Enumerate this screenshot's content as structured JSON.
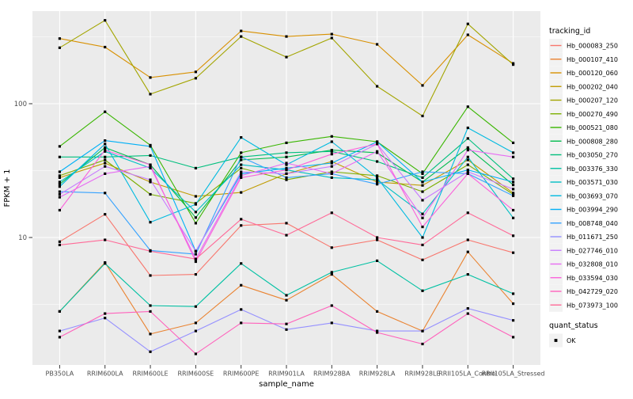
{
  "chart_data": {
    "type": "line",
    "title": "",
    "xlabel": "sample_name",
    "ylabel": "FPKM + 1",
    "y_scale": "log10",
    "ylim": [
      1.1,
      500
    ],
    "y_major_ticks": [
      10,
      100
    ],
    "y_major_tick_labels": [
      "10",
      "100"
    ],
    "y_minor_gridlines": [
      3.1623,
      31.623,
      316.23
    ],
    "grid": true,
    "legend_position": "right",
    "categories": [
      "PB350LA",
      "RRIM600LA",
      "RRIM600LE",
      "RRIM600SE",
      "RRIM600PE",
      "RRIM901LA",
      "RRIM928BA",
      "RRIM928LA",
      "RRIM928LE",
      "RRII105LA_Control",
      "RRII105LA_Stressed"
    ],
    "series": [
      {
        "name": "Hb_000083_250",
        "color": "#F8766D",
        "values": [
          9.3,
          14.9,
          5.2,
          5.3,
          12.3,
          12.8,
          8.4,
          9.6,
          6.8,
          9.6,
          7.7
        ]
      },
      {
        "name": "Hb_000107_410",
        "color": "#EA8331",
        "values": [
          2.8,
          6.5,
          1.9,
          2.3,
          4.4,
          3.4,
          5.3,
          2.8,
          2.0,
          7.8,
          3.2
        ]
      },
      {
        "name": "Hb_000120_060",
        "color": "#D89000",
        "values": [
          307,
          265,
          157,
          173,
          350,
          318,
          331,
          278,
          137,
          327,
          200
        ]
      },
      {
        "name": "Hb_000202_040",
        "color": "#C09B00",
        "values": [
          28,
          36,
          26,
          20.3,
          21.7,
          30,
          37,
          26,
          24.5,
          38,
          21.5
        ]
      },
      {
        "name": "Hb_000207_120",
        "color": "#A3A500",
        "values": [
          262,
          420,
          118,
          155,
          318,
          223,
          310,
          135,
          81,
          395,
          196
        ]
      },
      {
        "name": "Hb_000270_490",
        "color": "#7CAE00",
        "values": [
          29,
          38,
          21,
          18,
          33,
          27,
          31,
          29,
          22,
          35,
          21
        ]
      },
      {
        "name": "Hb_000521_080",
        "color": "#39B600",
        "values": [
          48,
          87,
          49,
          12.8,
          43,
          51,
          57,
          52,
          30,
          95,
          51
        ]
      },
      {
        "name": "Hb_000808_280",
        "color": "#00BB4E",
        "values": [
          25,
          47,
          35,
          14.1,
          38,
          40,
          45,
          43,
          26,
          47,
          24.7
        ]
      },
      {
        "name": "Hb_003050_270",
        "color": "#00BF7D",
        "values": [
          40,
          40,
          41,
          33,
          40,
          43,
          44,
          37,
          28,
          55,
          27.5
        ]
      },
      {
        "name": "Hb_003376_330",
        "color": "#00C1A3",
        "values": [
          2.8,
          6.4,
          3.1,
          3.05,
          6.4,
          3.7,
          5.5,
          6.7,
          4.0,
          5.3,
          3.8
        ]
      },
      {
        "name": "Hb_003571_030",
        "color": "#00BFC4",
        "values": [
          26,
          44,
          33,
          15.5,
          35,
          32,
          28,
          27,
          15,
          40,
          14
        ]
      },
      {
        "name": "Hb_003693_070",
        "color": "#00BAE0",
        "values": [
          24,
          50,
          13,
          17.7,
          56,
          35,
          52,
          28,
          10,
          66,
          43
        ]
      },
      {
        "name": "Hb_003994_290",
        "color": "#00B0F6",
        "values": [
          31,
          53,
          48,
          7.9,
          30,
          33,
          36,
          52,
          26,
          32,
          26
        ]
      },
      {
        "name": "Hb_008748_040",
        "color": "#35A2FF",
        "values": [
          22,
          21.5,
          8,
          7.5,
          40,
          28,
          30,
          25,
          31,
          30,
          20.5
        ]
      },
      {
        "name": "Hb_011671_250",
        "color": "#9590FF",
        "values": [
          2.0,
          2.5,
          1.4,
          2.0,
          2.9,
          2.05,
          2.3,
          2.0,
          2.0,
          2.95,
          2.4
        ]
      },
      {
        "name": "Hb_027746_010",
        "color": "#C77CFF",
        "values": [
          21,
          34,
          27,
          7.9,
          31,
          30,
          34,
          50,
          19,
          31,
          23
        ]
      },
      {
        "name": "Hb_032808_010",
        "color": "#E76BF3",
        "values": [
          20,
          30,
          34,
          6.9,
          29,
          36,
          30,
          44,
          14,
          45,
          40
        ]
      },
      {
        "name": "Hb_033594_030",
        "color": "#FA62DB",
        "values": [
          16,
          45,
          35,
          6.6,
          28,
          32,
          42,
          50,
          12,
          30,
          16
        ]
      },
      {
        "name": "Hb_042729_020",
        "color": "#FF62BC",
        "values": [
          1.8,
          2.7,
          2.8,
          1.35,
          2.3,
          2.26,
          3.1,
          1.95,
          1.6,
          2.7,
          1.8
        ]
      },
      {
        "name": "Hb_073973_100",
        "color": "#FF6A98",
        "values": [
          8.8,
          9.6,
          7.9,
          6.9,
          13.7,
          10.4,
          15.3,
          10.0,
          8.8,
          15.3,
          10.3
        ]
      }
    ],
    "legend": {
      "title": "tracking_id"
    },
    "legend2": {
      "title": "quant_status",
      "entries": [
        {
          "label": "OK",
          "marker": "square",
          "color": "#000000"
        }
      ]
    },
    "marker": {
      "shape": "square",
      "color": "#000000",
      "size": 3.2
    },
    "style": {
      "panel_bg": "#EBEBEB",
      "grid_color": "#FFFFFF",
      "tick_label_color": "#4D4D4D",
      "axis_title_color": "#000000",
      "legend_key_bg": "#F2F2F2",
      "accent_note": ""
    }
  }
}
